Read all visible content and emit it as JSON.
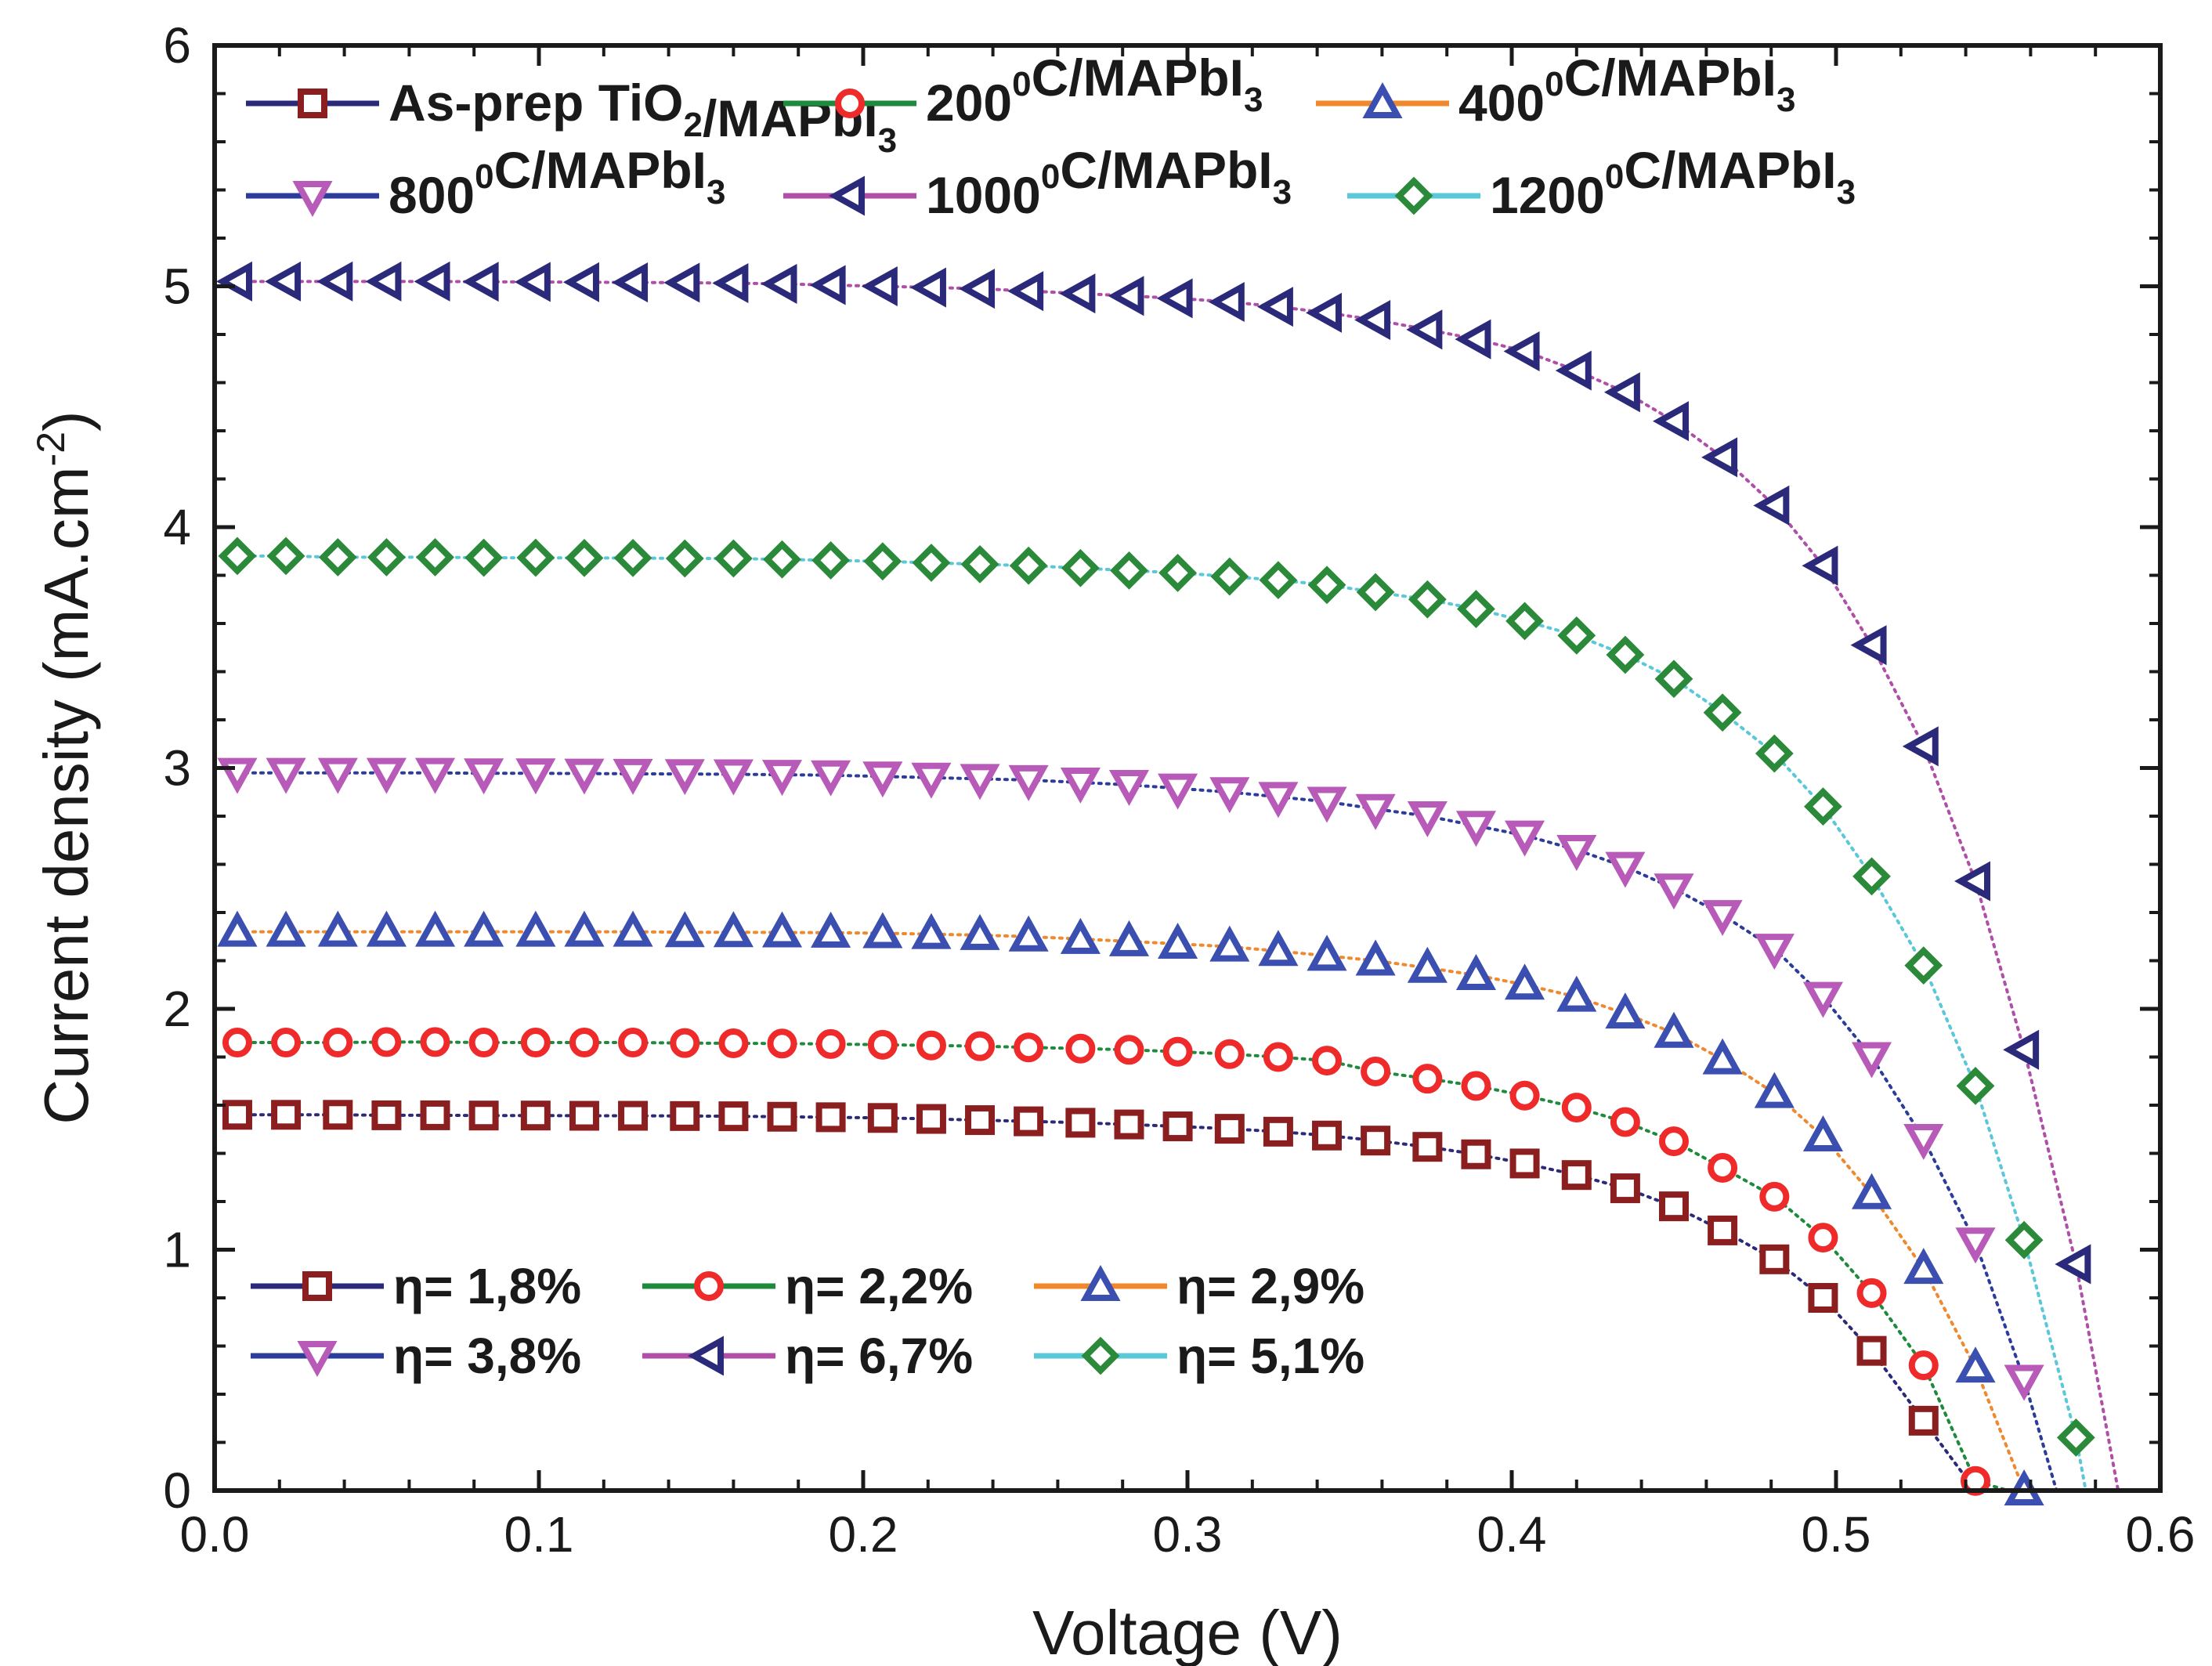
{
  "chart_data": {
    "type": "line",
    "xlabel": "Voltage (V)",
    "ylabel_main": "Current density (mA.cm",
    "ylabel_sup": "-2",
    "ylabel_close": ")",
    "xlim": [
      0.0,
      0.6
    ],
    "ylim": [
      0,
      6
    ],
    "xticks": [
      "0.0",
      "0.1",
      "0.2",
      "0.3",
      "0.4",
      "0.5",
      "0.6"
    ],
    "xtick_values": [
      0.0,
      0.1,
      0.2,
      0.3,
      0.4,
      0.5,
      0.6
    ],
    "yticks": [
      "0",
      "1",
      "2",
      "3",
      "4",
      "5",
      "6"
    ],
    "ytick_values": [
      0,
      1,
      2,
      3,
      4,
      5,
      6
    ],
    "grid": false,
    "series": [
      {
        "id": "s1",
        "parts": [
          {
            "t": "As-prep TiO"
          },
          {
            "t": "2",
            "sub": true
          },
          {
            "t": "/MAPbI"
          },
          {
            "t": "3",
            "sub": true
          }
        ],
        "efficiency": "η= 1,8%",
        "marker": "square",
        "marker_color": "#8b1e1e",
        "line_color": "#2b2a7a",
        "point_line_color": "#2b2a7a",
        "legend_line_color": "#2b2a7a",
        "voc": 0.543,
        "points": [
          [
            0.007,
            1.56
          ],
          [
            0.022,
            1.56
          ],
          [
            0.038,
            1.56
          ],
          [
            0.053,
            1.558
          ],
          [
            0.068,
            1.558
          ],
          [
            0.083,
            1.557
          ],
          [
            0.099,
            1.557
          ],
          [
            0.114,
            1.556
          ],
          [
            0.129,
            1.556
          ],
          [
            0.145,
            1.555
          ],
          [
            0.16,
            1.554
          ],
          [
            0.175,
            1.552
          ],
          [
            0.19,
            1.55
          ],
          [
            0.206,
            1.547
          ],
          [
            0.221,
            1.543
          ],
          [
            0.236,
            1.538
          ],
          [
            0.251,
            1.533
          ],
          [
            0.267,
            1.527
          ],
          [
            0.282,
            1.52
          ],
          [
            0.297,
            1.512
          ],
          [
            0.313,
            1.502
          ],
          [
            0.328,
            1.49
          ],
          [
            0.343,
            1.474
          ],
          [
            0.358,
            1.453
          ],
          [
            0.374,
            1.427
          ],
          [
            0.389,
            1.396
          ],
          [
            0.404,
            1.358
          ],
          [
            0.42,
            1.31
          ],
          [
            0.435,
            1.255
          ],
          [
            0.45,
            1.18
          ],
          [
            0.465,
            1.08
          ],
          [
            0.481,
            0.96
          ],
          [
            0.496,
            0.8
          ],
          [
            0.511,
            0.58
          ],
          [
            0.527,
            0.29
          ]
        ]
      },
      {
        "id": "s2",
        "parts": [
          {
            "t": "200"
          },
          {
            "t": "0",
            "sup": true
          },
          {
            "t": "C/MAPbI"
          },
          {
            "t": "3",
            "sub": true
          }
        ],
        "efficiency": "η= 2,2%",
        "marker": "circle",
        "marker_color": "#ee2a2a",
        "line_color": "#1e8a3c",
        "legend_line_color": "#1e8a3c",
        "voc": 0.553,
        "points": [
          [
            0.007,
            1.86
          ],
          [
            0.022,
            1.86
          ],
          [
            0.038,
            1.86
          ],
          [
            0.053,
            1.862
          ],
          [
            0.068,
            1.862
          ],
          [
            0.083,
            1.86
          ],
          [
            0.099,
            1.86
          ],
          [
            0.114,
            1.86
          ],
          [
            0.129,
            1.86
          ],
          [
            0.145,
            1.858
          ],
          [
            0.16,
            1.857
          ],
          [
            0.175,
            1.856
          ],
          [
            0.19,
            1.854
          ],
          [
            0.206,
            1.851
          ],
          [
            0.221,
            1.848
          ],
          [
            0.236,
            1.845
          ],
          [
            0.251,
            1.84
          ],
          [
            0.267,
            1.835
          ],
          [
            0.282,
            1.83
          ],
          [
            0.297,
            1.822
          ],
          [
            0.313,
            1.812
          ],
          [
            0.328,
            1.8
          ],
          [
            0.343,
            1.785
          ],
          [
            0.358,
            1.74
          ],
          [
            0.374,
            1.71
          ],
          [
            0.389,
            1.68
          ],
          [
            0.404,
            1.64
          ],
          [
            0.42,
            1.59
          ],
          [
            0.435,
            1.53
          ],
          [
            0.45,
            1.45
          ],
          [
            0.465,
            1.34
          ],
          [
            0.481,
            1.22
          ],
          [
            0.496,
            1.05
          ],
          [
            0.511,
            0.82
          ],
          [
            0.527,
            0.52
          ],
          [
            0.543,
            0.04
          ]
        ]
      },
      {
        "id": "s3",
        "parts": [
          {
            "t": "400"
          },
          {
            "t": "0",
            "sup": true
          },
          {
            "t": "C/MAPbI"
          },
          {
            "t": "3",
            "sub": true
          }
        ],
        "efficiency": "η= 2,9%",
        "marker": "triangle-up",
        "marker_color": "#3b4fb0",
        "line_color": "#f0892e",
        "legend_line_color": "#f0892e",
        "voc": 0.563,
        "points": [
          [
            0.007,
            2.32
          ],
          [
            0.022,
            2.32
          ],
          [
            0.038,
            2.32
          ],
          [
            0.053,
            2.32
          ],
          [
            0.068,
            2.32
          ],
          [
            0.083,
            2.32
          ],
          [
            0.099,
            2.32
          ],
          [
            0.114,
            2.32
          ],
          [
            0.129,
            2.32
          ],
          [
            0.145,
            2.318
          ],
          [
            0.16,
            2.318
          ],
          [
            0.175,
            2.317
          ],
          [
            0.19,
            2.316
          ],
          [
            0.206,
            2.314
          ],
          [
            0.221,
            2.31
          ],
          [
            0.236,
            2.306
          ],
          [
            0.251,
            2.3
          ],
          [
            0.267,
            2.29
          ],
          [
            0.282,
            2.28
          ],
          [
            0.297,
            2.27
          ],
          [
            0.313,
            2.258
          ],
          [
            0.328,
            2.24
          ],
          [
            0.343,
            2.22
          ],
          [
            0.358,
            2.2
          ],
          [
            0.374,
            2.17
          ],
          [
            0.389,
            2.14
          ],
          [
            0.404,
            2.1
          ],
          [
            0.42,
            2.05
          ],
          [
            0.435,
            1.98
          ],
          [
            0.45,
            1.9
          ],
          [
            0.465,
            1.79
          ],
          [
            0.481,
            1.65
          ],
          [
            0.496,
            1.47
          ],
          [
            0.511,
            1.23
          ],
          [
            0.527,
            0.92
          ],
          [
            0.543,
            0.51
          ],
          [
            0.558,
            0.0
          ]
        ]
      },
      {
        "id": "s4",
        "parts": [
          {
            "t": "800"
          },
          {
            "t": "0",
            "sup": true
          },
          {
            "t": "C/MAPbI"
          },
          {
            "t": "3",
            "sub": true
          }
        ],
        "efficiency": "η= 3,8%",
        "marker": "triangle-down",
        "marker_color": "#b85ab8",
        "line_color": "#2b3c9a",
        "legend_line_color": "#2b3c9a",
        "voc": 0.568,
        "points": [
          [
            0.007,
            2.98
          ],
          [
            0.022,
            2.98
          ],
          [
            0.038,
            2.98
          ],
          [
            0.053,
            2.98
          ],
          [
            0.068,
            2.98
          ],
          [
            0.083,
            2.978
          ],
          [
            0.099,
            2.978
          ],
          [
            0.114,
            2.977
          ],
          [
            0.129,
            2.976
          ],
          [
            0.145,
            2.975
          ],
          [
            0.16,
            2.974
          ],
          [
            0.175,
            2.972
          ],
          [
            0.19,
            2.97
          ],
          [
            0.206,
            2.965
          ],
          [
            0.221,
            2.96
          ],
          [
            0.236,
            2.955
          ],
          [
            0.251,
            2.95
          ],
          [
            0.267,
            2.94
          ],
          [
            0.282,
            2.93
          ],
          [
            0.297,
            2.915
          ],
          [
            0.313,
            2.9
          ],
          [
            0.328,
            2.88
          ],
          [
            0.343,
            2.86
          ],
          [
            0.358,
            2.83
          ],
          [
            0.374,
            2.8
          ],
          [
            0.389,
            2.76
          ],
          [
            0.404,
            2.72
          ],
          [
            0.42,
            2.66
          ],
          [
            0.435,
            2.59
          ],
          [
            0.45,
            2.5
          ],
          [
            0.465,
            2.39
          ],
          [
            0.481,
            2.25
          ],
          [
            0.496,
            2.05
          ],
          [
            0.511,
            1.8
          ],
          [
            0.527,
            1.46
          ],
          [
            0.543,
            1.03
          ],
          [
            0.558,
            0.46
          ]
        ]
      },
      {
        "id": "s5",
        "parts": [
          {
            "t": "1000"
          },
          {
            "t": "0",
            "sup": true
          },
          {
            "t": "C/MAPbI"
          },
          {
            "t": "3",
            "sub": true
          }
        ],
        "efficiency": "η= 6,7%",
        "marker": "triangle-left",
        "marker_color": "#2b2a7a",
        "line_color": "#b14fa8",
        "legend_line_color": "#b14fa8",
        "voc": 0.587,
        "points": [
          [
            0.007,
            5.02
          ],
          [
            0.022,
            5.02
          ],
          [
            0.038,
            5.02
          ],
          [
            0.053,
            5.02
          ],
          [
            0.068,
            5.02
          ],
          [
            0.083,
            5.019
          ],
          [
            0.099,
            5.018
          ],
          [
            0.114,
            5.017
          ],
          [
            0.129,
            5.016
          ],
          [
            0.145,
            5.015
          ],
          [
            0.16,
            5.013
          ],
          [
            0.175,
            5.01
          ],
          [
            0.19,
            5.005
          ],
          [
            0.206,
            5.0
          ],
          [
            0.221,
            4.995
          ],
          [
            0.236,
            4.99
          ],
          [
            0.251,
            4.98
          ],
          [
            0.267,
            4.97
          ],
          [
            0.282,
            4.96
          ],
          [
            0.297,
            4.95
          ],
          [
            0.313,
            4.935
          ],
          [
            0.328,
            4.915
          ],
          [
            0.343,
            4.89
          ],
          [
            0.358,
            4.86
          ],
          [
            0.374,
            4.82
          ],
          [
            0.389,
            4.78
          ],
          [
            0.404,
            4.73
          ],
          [
            0.42,
            4.65
          ],
          [
            0.435,
            4.56
          ],
          [
            0.45,
            4.44
          ],
          [
            0.465,
            4.29
          ],
          [
            0.481,
            4.09
          ],
          [
            0.496,
            3.84
          ],
          [
            0.511,
            3.51
          ],
          [
            0.527,
            3.09
          ],
          [
            0.543,
            2.53
          ],
          [
            0.558,
            1.83
          ],
          [
            0.574,
            0.94
          ]
        ]
      },
      {
        "id": "s6",
        "parts": [
          {
            "t": "1200"
          },
          {
            "t": "0",
            "sup": true
          },
          {
            "t": "C/MAPbI"
          },
          {
            "t": "3",
            "sub": true
          }
        ],
        "efficiency": "η= 5,1%",
        "marker": "diamond",
        "marker_color": "#2a8a3a",
        "line_color": "#5ac8d8",
        "legend_line_color": "#5ac8d8",
        "voc": 0.577,
        "points": [
          [
            0.007,
            3.88
          ],
          [
            0.022,
            3.88
          ],
          [
            0.038,
            3.875
          ],
          [
            0.053,
            3.875
          ],
          [
            0.068,
            3.875
          ],
          [
            0.083,
            3.873
          ],
          [
            0.099,
            3.873
          ],
          [
            0.114,
            3.872
          ],
          [
            0.129,
            3.872
          ],
          [
            0.145,
            3.87
          ],
          [
            0.16,
            3.87
          ],
          [
            0.175,
            3.866
          ],
          [
            0.19,
            3.862
          ],
          [
            0.206,
            3.858
          ],
          [
            0.221,
            3.852
          ],
          [
            0.236,
            3.846
          ],
          [
            0.251,
            3.84
          ],
          [
            0.267,
            3.83
          ],
          [
            0.282,
            3.82
          ],
          [
            0.297,
            3.81
          ],
          [
            0.313,
            3.795
          ],
          [
            0.328,
            3.78
          ],
          [
            0.343,
            3.76
          ],
          [
            0.358,
            3.73
          ],
          [
            0.374,
            3.7
          ],
          [
            0.389,
            3.66
          ],
          [
            0.404,
            3.61
          ],
          [
            0.42,
            3.55
          ],
          [
            0.435,
            3.47
          ],
          [
            0.45,
            3.37
          ],
          [
            0.465,
            3.23
          ],
          [
            0.481,
            3.06
          ],
          [
            0.496,
            2.84
          ],
          [
            0.511,
            2.55
          ],
          [
            0.527,
            2.18
          ],
          [
            0.543,
            1.68
          ],
          [
            0.558,
            1.04
          ],
          [
            0.574,
            0.22
          ]
        ]
      }
    ]
  }
}
